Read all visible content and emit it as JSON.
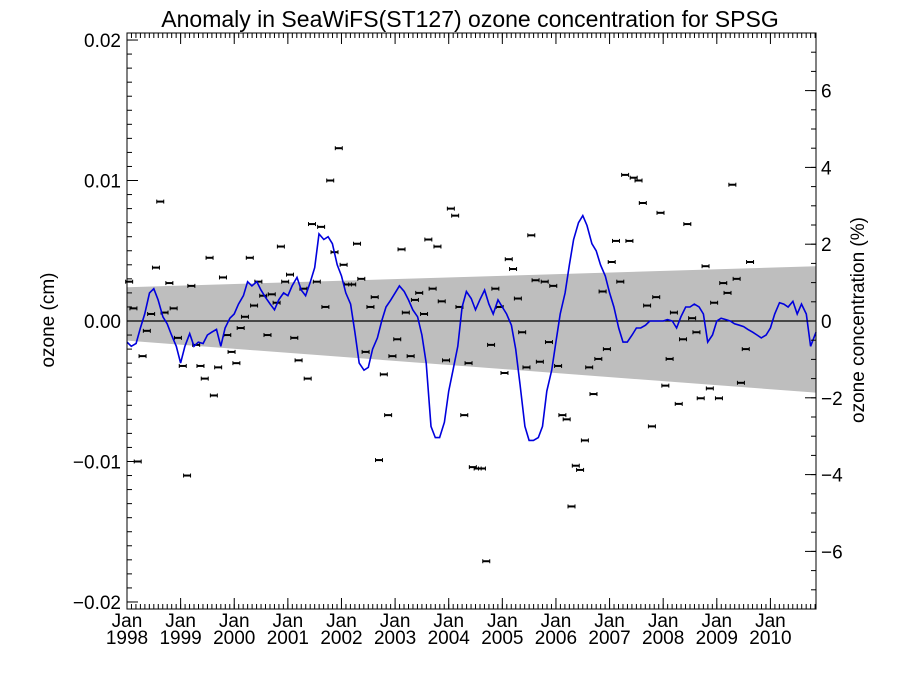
{
  "chart_data": {
    "type": "scatter",
    "title": "Anomaly in SeaWiFS(ST127) ozone concentration for SPSG",
    "ylabel": "ozone (cm)",
    "y2label": "ozone concentration (%)",
    "xlim": [
      1998.0,
      2010.85
    ],
    "ylim": [
      -0.0205,
      0.0205
    ],
    "y2lim": [
      -7.5,
      7.5
    ],
    "x_ticks": [
      {
        "x": 1998,
        "line1": "Jan",
        "line2": "1998"
      },
      {
        "x": 1999,
        "line1": "Jan",
        "line2": "1999"
      },
      {
        "x": 2000,
        "line1": "Jan",
        "line2": "2000"
      },
      {
        "x": 2001,
        "line1": "Jan",
        "line2": "2001"
      },
      {
        "x": 2002,
        "line1": "Jan",
        "line2": "2002"
      },
      {
        "x": 2003,
        "line1": "Jan",
        "line2": "2003"
      },
      {
        "x": 2004,
        "line1": "Jan",
        "line2": "2004"
      },
      {
        "x": 2005,
        "line1": "Jan",
        "line2": "2005"
      },
      {
        "x": 2006,
        "line1": "Jan",
        "line2": "2006"
      },
      {
        "x": 2007,
        "line1": "Jan",
        "line2": "2007"
      },
      {
        "x": 2008,
        "line1": "Jan",
        "line2": "2008"
      },
      {
        "x": 2009,
        "line1": "Jan",
        "line2": "2009"
      },
      {
        "x": 2010,
        "line1": "Jan",
        "line2": "2010"
      }
    ],
    "y_ticks": [
      {
        "v": 0.02,
        "label": "0.02"
      },
      {
        "v": 0.01,
        "label": "0.01"
      },
      {
        "v": 0.0,
        "label": "0.00"
      },
      {
        "v": -0.01,
        "label": "−0.01"
      },
      {
        "v": -0.02,
        "label": "−0.02"
      }
    ],
    "y2_ticks": [
      {
        "v": 6,
        "label": "6"
      },
      {
        "v": 4,
        "label": "4"
      },
      {
        "v": 2,
        "label": "2"
      },
      {
        "v": 0,
        "label": "0"
      },
      {
        "v": -2,
        "label": "−2"
      },
      {
        "v": -4,
        "label": "−4"
      },
      {
        "v": -6,
        "label": "−6"
      }
    ],
    "trend_band": {
      "x": [
        1998.0,
        2010.85
      ],
      "upper": [
        0.0024,
        0.0039
      ],
      "lower": [
        -0.0014,
        -0.0051
      ]
    },
    "zero_line": true,
    "colors": {
      "line": "#0000dd",
      "band": "#bebebe",
      "points": "#000000"
    },
    "scatter_points": [
      [
        1998.04,
        0.0028
      ],
      [
        1998.12,
        0.0009
      ],
      [
        1998.2,
        -0.01
      ],
      [
        1998.29,
        -0.0025
      ],
      [
        1998.37,
        -0.0007
      ],
      [
        1998.45,
        0.0005
      ],
      [
        1998.54,
        0.0038
      ],
      [
        1998.62,
        0.0085
      ],
      [
        1998.7,
        0.0006
      ],
      [
        1998.79,
        0.0027
      ],
      [
        1998.87,
        0.0009
      ],
      [
        1998.95,
        -0.0012
      ],
      [
        1999.04,
        -0.0032
      ],
      [
        1999.12,
        -0.011
      ],
      [
        1999.2,
        0.0025
      ],
      [
        1999.29,
        -0.0017
      ],
      [
        1999.37,
        -0.0032
      ],
      [
        1999.45,
        -0.0041
      ],
      [
        1999.54,
        0.0045
      ],
      [
        1999.62,
        -0.0053
      ],
      [
        1999.7,
        -0.0033
      ],
      [
        1999.79,
        0.0031
      ],
      [
        1999.87,
        -0.001
      ],
      [
        1999.95,
        -0.0022
      ],
      [
        2000.04,
        -0.003
      ],
      [
        2000.12,
        -0.0005
      ],
      [
        2000.2,
        0.0003
      ],
      [
        2000.29,
        0.0045
      ],
      [
        2000.37,
        0.0011
      ],
      [
        2000.45,
        0.0028
      ],
      [
        2000.54,
        0.0018
      ],
      [
        2000.62,
        -0.001
      ],
      [
        2000.7,
        0.0019
      ],
      [
        2000.79,
        0.0013
      ],
      [
        2000.87,
        0.0053
      ],
      [
        2000.95,
        0.0028
      ],
      [
        2001.04,
        0.0033
      ],
      [
        2001.12,
        -0.0012
      ],
      [
        2001.2,
        -0.0028
      ],
      [
        2001.29,
        0.0023
      ],
      [
        2001.37,
        -0.0041
      ],
      [
        2001.45,
        0.0069
      ],
      [
        2001.54,
        0.0028
      ],
      [
        2001.62,
        0.0067
      ],
      [
        2001.7,
        0.001
      ],
      [
        2001.79,
        0.01
      ],
      [
        2001.87,
        0.0049
      ],
      [
        2001.95,
        0.0123
      ],
      [
        2002.04,
        0.004
      ],
      [
        2002.12,
        0.0026
      ],
      [
        2002.2,
        0.0026
      ],
      [
        2002.29,
        0.0055
      ],
      [
        2002.37,
        0.003
      ],
      [
        2002.45,
        -0.0022
      ],
      [
        2002.54,
        0.001
      ],
      [
        2002.62,
        0.0017
      ],
      [
        2002.7,
        -0.0099
      ],
      [
        2002.79,
        -0.0038
      ],
      [
        2002.87,
        -0.0067
      ],
      [
        2002.95,
        -0.0025
      ],
      [
        2003.04,
        -0.0013
      ],
      [
        2003.12,
        0.0051
      ],
      [
        2003.2,
        0.0006
      ],
      [
        2003.29,
        -0.0025
      ],
      [
        2003.37,
        0.0015
      ],
      [
        2003.45,
        0.002
      ],
      [
        2003.54,
        0.0005
      ],
      [
        2003.62,
        0.0058
      ],
      [
        2003.7,
        0.0023
      ],
      [
        2003.79,
        0.0053
      ],
      [
        2003.87,
        0.0014
      ],
      [
        2003.95,
        -0.0028
      ],
      [
        2004.04,
        0.008
      ],
      [
        2004.12,
        0.0075
      ],
      [
        2004.2,
        0.001
      ],
      [
        2004.29,
        -0.0067
      ],
      [
        2004.37,
        -0.003
      ],
      [
        2004.45,
        -0.0104
      ],
      [
        2004.54,
        -0.0105
      ],
      [
        2004.62,
        -0.0105
      ],
      [
        2004.7,
        -0.0171
      ],
      [
        2004.79,
        -0.0017
      ],
      [
        2004.87,
        0.0023
      ],
      [
        2004.95,
        0.001
      ],
      [
        2005.04,
        -0.0037
      ],
      [
        2005.12,
        0.0044
      ],
      [
        2005.2,
        0.0037
      ],
      [
        2005.29,
        0.0016
      ],
      [
        2005.37,
        -0.0008
      ],
      [
        2005.45,
        -0.0033
      ],
      [
        2005.54,
        0.0061
      ],
      [
        2005.62,
        0.0029
      ],
      [
        2005.7,
        -0.0029
      ],
      [
        2005.79,
        0.0028
      ],
      [
        2005.87,
        -0.0015
      ],
      [
        2005.95,
        0.0025
      ],
      [
        2006.04,
        -0.0032
      ],
      [
        2006.12,
        -0.0067
      ],
      [
        2006.2,
        -0.007
      ],
      [
        2006.29,
        -0.0132
      ],
      [
        2006.37,
        -0.0103
      ],
      [
        2006.45,
        -0.0106
      ],
      [
        2006.54,
        -0.0085
      ],
      [
        2006.62,
        -0.0033
      ],
      [
        2006.7,
        -0.0052
      ],
      [
        2006.79,
        -0.0027
      ],
      [
        2006.87,
        0.0021
      ],
      [
        2006.95,
        -0.002
      ],
      [
        2007.04,
        0.0042
      ],
      [
        2007.12,
        0.0057
      ],
      [
        2007.2,
        0.0028
      ],
      [
        2007.29,
        0.0104
      ],
      [
        2007.37,
        0.0057
      ],
      [
        2007.45,
        0.0102
      ],
      [
        2007.54,
        0.01
      ],
      [
        2007.62,
        0.0084
      ],
      [
        2007.7,
        0.0011
      ],
      [
        2007.79,
        -0.0075
      ],
      [
        2007.87,
        0.0017
      ],
      [
        2007.95,
        0.0077
      ],
      [
        2008.04,
        -0.0046
      ],
      [
        2008.12,
        -0.0027
      ],
      [
        2008.2,
        0.0006
      ],
      [
        2008.29,
        -0.0059
      ],
      [
        2008.37,
        -0.0013
      ],
      [
        2008.45,
        0.0069
      ],
      [
        2008.54,
        0.0002
      ],
      [
        2008.62,
        -0.0008
      ],
      [
        2008.7,
        -0.0055
      ],
      [
        2008.79,
        0.0039
      ],
      [
        2008.87,
        -0.0048
      ],
      [
        2008.95,
        0.0013
      ],
      [
        2009.04,
        -0.0055
      ],
      [
        2009.12,
        0.0027
      ],
      [
        2009.2,
        0.002
      ],
      [
        2009.29,
        0.0097
      ],
      [
        2009.37,
        0.003
      ],
      [
        2009.45,
        -0.0044
      ],
      [
        2009.54,
        -0.002
      ],
      [
        2009.62,
        0.0042
      ]
    ],
    "line_series": {
      "name": "",
      "x": [
        1998.0,
        1998.08,
        1998.17,
        1998.25,
        1998.33,
        1998.42,
        1998.5,
        1998.58,
        1998.67,
        1998.75,
        1998.83,
        1998.92,
        1999.0,
        1999.08,
        1999.17,
        1999.25,
        1999.33,
        1999.42,
        1999.5,
        1999.58,
        1999.67,
        1999.75,
        1999.83,
        1999.92,
        2000.0,
        2000.08,
        2000.17,
        2000.25,
        2000.33,
        2000.42,
        2000.5,
        2000.58,
        2000.67,
        2000.75,
        2000.83,
        2000.92,
        2001.0,
        2001.08,
        2001.17,
        2001.25,
        2001.33,
        2001.42,
        2001.5,
        2001.58,
        2001.67,
        2001.75,
        2001.83,
        2001.92,
        2002.0,
        2002.08,
        2002.17,
        2002.25,
        2002.33,
        2002.42,
        2002.5,
        2002.58,
        2002.67,
        2002.75,
        2002.83,
        2002.92,
        2003.0,
        2003.08,
        2003.17,
        2003.25,
        2003.33,
        2003.42,
        2003.5,
        2003.58,
        2003.67,
        2003.75,
        2003.83,
        2003.92,
        2004.0,
        2004.08,
        2004.17,
        2004.25,
        2004.33,
        2004.42,
        2004.5,
        2004.58,
        2004.67,
        2004.75,
        2004.83,
        2004.92,
        2005.0,
        2005.08,
        2005.17,
        2005.25,
        2005.33,
        2005.42,
        2005.5,
        2005.58,
        2005.67,
        2005.75,
        2005.83,
        2005.92,
        2006.0,
        2006.08,
        2006.17,
        2006.25,
        2006.33,
        2006.42,
        2006.5,
        2006.58,
        2006.67,
        2006.75,
        2006.83,
        2006.92,
        2007.0,
        2007.08,
        2007.17,
        2007.25,
        2007.33,
        2007.42,
        2007.5,
        2007.58,
        2007.67,
        2007.75,
        2007.83,
        2007.92,
        2008.0,
        2008.08,
        2008.17,
        2008.25,
        2008.33,
        2008.42,
        2008.5,
        2008.58,
        2008.67,
        2008.75,
        2008.83,
        2008.92,
        2009.0,
        2009.08,
        2009.17,
        2009.25,
        2009.33,
        2009.42,
        2009.5,
        2009.58,
        2009.67,
        2009.75,
        2009.83,
        2009.92,
        2010.0,
        2010.08,
        2010.17,
        2010.25,
        2010.33,
        2010.42,
        2010.5,
        2010.58,
        2010.67,
        2010.75,
        2010.85
      ],
      "y": [
        -0.0015,
        -0.0018,
        -0.0016,
        -0.0005,
        0.0005,
        0.002,
        0.0023,
        0.0015,
        0.0003,
        -0.0002,
        -0.001,
        -0.0018,
        -0.003,
        -0.0018,
        -0.0009,
        -0.0018,
        -0.0015,
        -0.0016,
        -0.001,
        -0.0008,
        -0.0006,
        -0.0018,
        -0.0005,
        0.0002,
        0.0005,
        0.0012,
        0.0018,
        0.0028,
        0.0025,
        0.0028,
        0.0022,
        0.0017,
        0.0012,
        0.0008,
        0.0015,
        0.002,
        0.0018,
        0.0025,
        0.0031,
        0.0022,
        0.0018,
        0.0028,
        0.0038,
        0.0062,
        0.0058,
        0.006,
        0.0055,
        0.004,
        0.0032,
        0.002,
        0.0012,
        -0.0008,
        -0.003,
        -0.0035,
        -0.0033,
        -0.002,
        -0.0012,
        0.0,
        0.001,
        0.0015,
        0.002,
        0.0025,
        0.0021,
        0.0015,
        0.0008,
        0.0003,
        -0.001,
        -0.003,
        -0.0075,
        -0.0083,
        -0.0083,
        -0.0072,
        -0.005,
        -0.0035,
        -0.0018,
        0.001,
        0.0021,
        0.0016,
        0.0008,
        0.0015,
        0.0022,
        0.0012,
        0.0005,
        0.0015,
        0.001,
        0.0005,
        -0.0003,
        -0.002,
        -0.0045,
        -0.0075,
        -0.0085,
        -0.0085,
        -0.0083,
        -0.0075,
        -0.005,
        -0.0035,
        -0.0015,
        0.0005,
        0.002,
        0.004,
        0.0058,
        0.007,
        0.0075,
        0.0068,
        0.0055,
        0.005,
        0.004,
        0.0032,
        0.002,
        0.001,
        -0.0005,
        -0.0015,
        -0.0015,
        -0.001,
        -0.0005,
        -0.0005,
        -0.0003,
        0.0,
        0.0,
        0.0,
        0.0,
        0.0001,
        0.0,
        -0.0005,
        0.0003,
        0.001,
        0.001,
        0.0012,
        0.001,
        0.0005,
        -0.0015,
        -0.001,
        0.0,
        0.0002,
        0.0001,
        0.0,
        -0.0002,
        -0.0003,
        -0.0004,
        -0.0006,
        -0.0008,
        -0.001,
        -0.0012,
        -0.001,
        -0.0005,
        0.0005,
        0.0013,
        0.0012,
        0.001,
        0.0014,
        0.0005,
        0.0012,
        0.0005,
        -0.0018,
        -0.0008
      ]
    }
  }
}
